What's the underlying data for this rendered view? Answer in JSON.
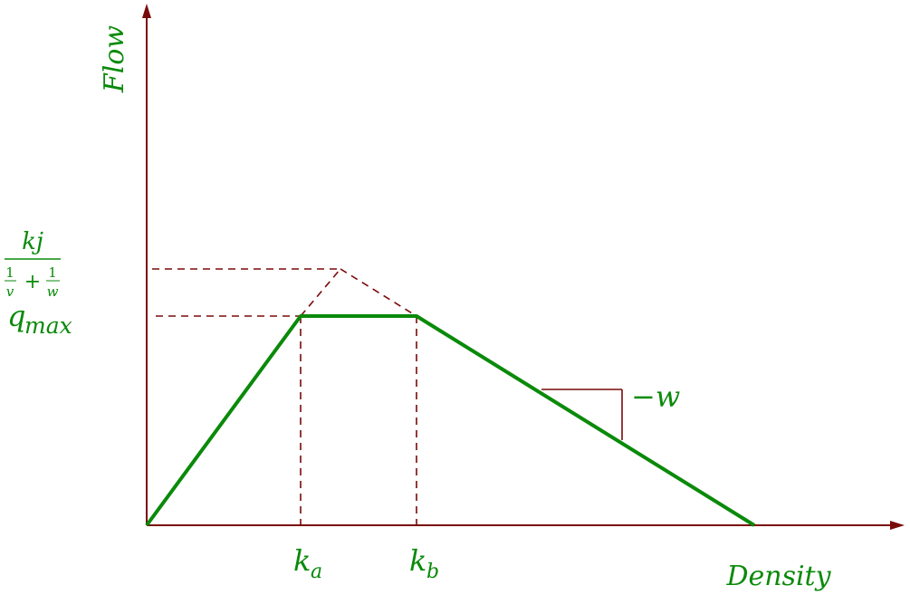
{
  "axes": {
    "y_label": "Flow",
    "x_label": "Density"
  },
  "labels": {
    "capacity": "q",
    "capacity_sub": "max",
    "ka": "k",
    "ka_sub": "a",
    "kb": "k",
    "kb_sub": "b",
    "slope": "−w",
    "frac_num": "kj",
    "frac_den_one_a": "1",
    "frac_den_v": "v",
    "frac_den_plus": "+",
    "frac_den_one_b": "1",
    "frac_den_w": "w"
  },
  "colors": {
    "axis": "#7a0a0a",
    "curve": "#0a8a0a",
    "text": "#0a8a0a"
  }
}
